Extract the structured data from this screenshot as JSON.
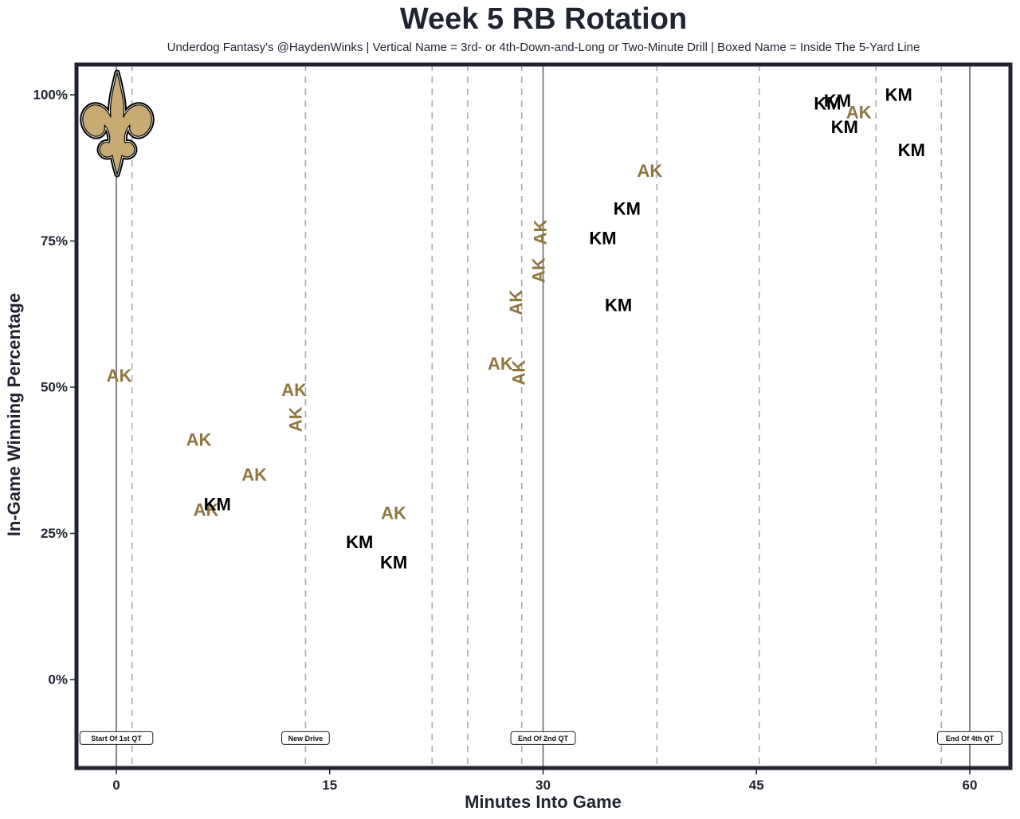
{
  "chart_data": {
    "type": "scatter",
    "title": "Week 5 RB Rotation",
    "subtitle": "Underdog Fantasy's @HaydenWinks | Vertical Name = 3rd- or 4th-Down-and-Long or Two-Minute Drill | Boxed Name = Inside The 5-Yard Line",
    "xlabel": "Minutes Into Game",
    "ylabel": "In-Game Winning Percentage",
    "xlim": [
      -2.8,
      63.2
    ],
    "ylim": [
      -15,
      105
    ],
    "xticks": [
      0,
      15,
      30,
      45,
      60
    ],
    "xtick_labels": [
      "0",
      "15",
      "30",
      "45",
      "60"
    ],
    "yticks": [
      0,
      25,
      50,
      75,
      100
    ],
    "ytick_labels": [
      "0%",
      "25%",
      "50%",
      "75%",
      "100%"
    ],
    "grid": false,
    "team_logo": "saints-fleur-de-lis-icon",
    "colors": {
      "AK": "#8f7641",
      "KM": "#000000",
      "frame": "#1f2430",
      "solid_line": "#666666",
      "dashed_line": "#aaaaaa",
      "logo_gold": "#c7ab72"
    },
    "quarter_lines": [
      0,
      30,
      60
    ],
    "drive_lines": [
      1.1,
      13.3,
      22.2,
      24.7,
      28.5,
      38.0,
      45.2,
      53.4,
      58.0
    ],
    "annotations": [
      {
        "x": 0,
        "label": "Start Of 1st QT"
      },
      {
        "x": 13.3,
        "label": "New Drive"
      },
      {
        "x": 30,
        "label": "End Of 2nd QT"
      },
      {
        "x": 60,
        "label": "End Of 4th QT"
      }
    ],
    "annotation_y": -10,
    "series": [
      {
        "name": "AK",
        "points": [
          {
            "x": 0.2,
            "y": 52.0,
            "vertical": false
          },
          {
            "x": 5.8,
            "y": 41.0,
            "vertical": false
          },
          {
            "x": 6.3,
            "y": 29.0,
            "vertical": false
          },
          {
            "x": 9.7,
            "y": 35.0,
            "vertical": false
          },
          {
            "x": 12.5,
            "y": 49.5,
            "vertical": false
          },
          {
            "x": 12.6,
            "y": 44.5,
            "vertical": true
          },
          {
            "x": 19.5,
            "y": 28.5,
            "vertical": false
          },
          {
            "x": 27.0,
            "y": 54.0,
            "vertical": false
          },
          {
            "x": 28.3,
            "y": 52.5,
            "vertical": true
          },
          {
            "x": 28.1,
            "y": 64.5,
            "vertical": true
          },
          {
            "x": 29.7,
            "y": 70.0,
            "vertical": true
          },
          {
            "x": 29.8,
            "y": 76.5,
            "vertical": true
          },
          {
            "x": 37.5,
            "y": 87.0,
            "vertical": false
          },
          {
            "x": 52.2,
            "y": 97.0,
            "vertical": false
          }
        ]
      },
      {
        "name": "KM",
        "points": [
          {
            "x": 7.1,
            "y": 30.0,
            "vertical": false
          },
          {
            "x": 17.1,
            "y": 23.5,
            "vertical": false
          },
          {
            "x": 19.5,
            "y": 20.0,
            "vertical": false
          },
          {
            "x": 34.2,
            "y": 75.5,
            "vertical": false
          },
          {
            "x": 35.9,
            "y": 80.5,
            "vertical": false
          },
          {
            "x": 35.3,
            "y": 64.0,
            "vertical": false
          },
          {
            "x": 50.0,
            "y": 98.5,
            "vertical": false
          },
          {
            "x": 50.7,
            "y": 99.0,
            "vertical": false
          },
          {
            "x": 51.2,
            "y": 94.5,
            "vertical": false
          },
          {
            "x": 55.0,
            "y": 100.0,
            "vertical": false
          },
          {
            "x": 55.9,
            "y": 90.5,
            "vertical": false
          }
        ]
      }
    ]
  }
}
